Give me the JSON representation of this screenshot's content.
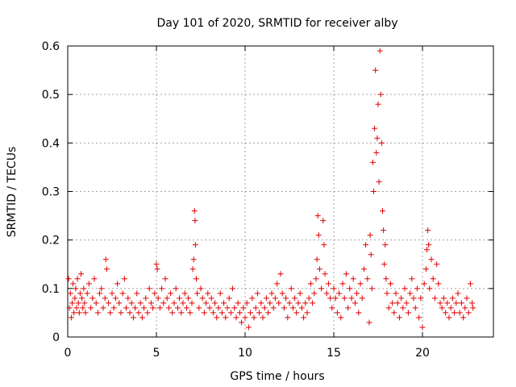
{
  "chart_data": {
    "type": "scatter",
    "title": "Day 101 of 2020, SRMTID for receiver alby",
    "xlabel": "GPS time / hours",
    "ylabel": "SRMTID / TECUs",
    "xlim": [
      0,
      24
    ],
    "ylim": [
      0,
      0.6
    ],
    "xticks": [
      0,
      5,
      10,
      15,
      20
    ],
    "xtick_labels": [
      "0",
      "5",
      "10",
      "15",
      "20"
    ],
    "yticks": [
      0,
      0.1,
      0.2,
      0.3,
      0.4,
      0.5,
      0.6
    ],
    "ytick_labels": [
      "0",
      "0.1",
      "0.2",
      "0.3",
      "0.4",
      "0.5",
      "0.6"
    ],
    "grid": true,
    "marker": "+",
    "color": "#e00000",
    "series": [
      {
        "name": "SRMTID",
        "points": [
          [
            0.05,
            0.12
          ],
          [
            0.1,
            0.06
          ],
          [
            0.15,
            0.09
          ],
          [
            0.2,
            0.04
          ],
          [
            0.25,
            0.07
          ],
          [
            0.3,
            0.11
          ],
          [
            0.35,
            0.05
          ],
          [
            0.4,
            0.08
          ],
          [
            0.45,
            0.1
          ],
          [
            0.5,
            0.06
          ],
          [
            0.55,
            0.12
          ],
          [
            0.6,
            0.07
          ],
          [
            0.65,
            0.05
          ],
          [
            0.7,
            0.09
          ],
          [
            0.75,
            0.13
          ],
          [
            0.8,
            0.08
          ],
          [
            0.85,
            0.06
          ],
          [
            0.9,
            0.1
          ],
          [
            0.95,
            0.07
          ],
          [
            1.0,
            0.05
          ],
          [
            1.1,
            0.09
          ],
          [
            1.2,
            0.11
          ],
          [
            1.3,
            0.06
          ],
          [
            1.4,
            0.08
          ],
          [
            1.5,
            0.12
          ],
          [
            1.6,
            0.07
          ],
          [
            1.7,
            0.05
          ],
          [
            1.8,
            0.09
          ],
          [
            1.9,
            0.1
          ],
          [
            2.0,
            0.06
          ],
          [
            2.1,
            0.08
          ],
          [
            2.15,
            0.16
          ],
          [
            2.2,
            0.14
          ],
          [
            2.3,
            0.07
          ],
          [
            2.4,
            0.05
          ],
          [
            2.5,
            0.09
          ],
          [
            2.6,
            0.06
          ],
          [
            2.7,
            0.08
          ],
          [
            2.8,
            0.11
          ],
          [
            2.9,
            0.07
          ],
          [
            3.0,
            0.05
          ],
          [
            3.1,
            0.09
          ],
          [
            3.2,
            0.12
          ],
          [
            3.3,
            0.06
          ],
          [
            3.4,
            0.08
          ],
          [
            3.5,
            0.05
          ],
          [
            3.6,
            0.07
          ],
          [
            3.7,
            0.04
          ],
          [
            3.8,
            0.06
          ],
          [
            3.9,
            0.09
          ],
          [
            4.0,
            0.05
          ],
          [
            4.1,
            0.07
          ],
          [
            4.2,
            0.04
          ],
          [
            4.3,
            0.06
          ],
          [
            4.4,
            0.08
          ],
          [
            4.5,
            0.05
          ],
          [
            4.6,
            0.1
          ],
          [
            4.7,
            0.07
          ],
          [
            4.8,
            0.06
          ],
          [
            4.9,
            0.09
          ],
          [
            5.0,
            0.15
          ],
          [
            5.05,
            0.14
          ],
          [
            5.1,
            0.08
          ],
          [
            5.2,
            0.06
          ],
          [
            5.3,
            0.1
          ],
          [
            5.4,
            0.07
          ],
          [
            5.5,
            0.12
          ],
          [
            5.6,
            0.08
          ],
          [
            5.7,
            0.06
          ],
          [
            5.8,
            0.09
          ],
          [
            5.9,
            0.05
          ],
          [
            6.0,
            0.07
          ],
          [
            6.1,
            0.1
          ],
          [
            6.2,
            0.06
          ],
          [
            6.3,
            0.08
          ],
          [
            6.4,
            0.05
          ],
          [
            6.5,
            0.07
          ],
          [
            6.6,
            0.09
          ],
          [
            6.7,
            0.06
          ],
          [
            6.8,
            0.08
          ],
          [
            6.9,
            0.05
          ],
          [
            7.0,
            0.07
          ],
          [
            7.05,
            0.14
          ],
          [
            7.1,
            0.16
          ],
          [
            7.15,
            0.26
          ],
          [
            7.18,
            0.24
          ],
          [
            7.2,
            0.19
          ],
          [
            7.25,
            0.12
          ],
          [
            7.3,
            0.09
          ],
          [
            7.4,
            0.06
          ],
          [
            7.5,
            0.1
          ],
          [
            7.6,
            0.08
          ],
          [
            7.7,
            0.05
          ],
          [
            7.8,
            0.07
          ],
          [
            7.9,
            0.09
          ],
          [
            8.0,
            0.06
          ],
          [
            8.1,
            0.08
          ],
          [
            8.2,
            0.05
          ],
          [
            8.3,
            0.07
          ],
          [
            8.4,
            0.04
          ],
          [
            8.5,
            0.06
          ],
          [
            8.6,
            0.09
          ],
          [
            8.7,
            0.05
          ],
          [
            8.8,
            0.07
          ],
          [
            8.9,
            0.04
          ],
          [
            9.0,
            0.06
          ],
          [
            9.1,
            0.08
          ],
          [
            9.2,
            0.05
          ],
          [
            9.3,
            0.1
          ],
          [
            9.4,
            0.06
          ],
          [
            9.5,
            0.04
          ],
          [
            9.6,
            0.07
          ],
          [
            9.7,
            0.05
          ],
          [
            9.8,
            0.03
          ],
          [
            9.9,
            0.06
          ],
          [
            10.0,
            0.04
          ],
          [
            10.1,
            0.07
          ],
          [
            10.2,
            0.02
          ],
          [
            10.3,
            0.05
          ],
          [
            10.4,
            0.08
          ],
          [
            10.5,
            0.04
          ],
          [
            10.6,
            0.06
          ],
          [
            10.7,
            0.09
          ],
          [
            10.8,
            0.05
          ],
          [
            10.9,
            0.07
          ],
          [
            11.0,
            0.04
          ],
          [
            11.1,
            0.06
          ],
          [
            11.2,
            0.08
          ],
          [
            11.3,
            0.05
          ],
          [
            11.4,
            0.07
          ],
          [
            11.5,
            0.09
          ],
          [
            11.6,
            0.06
          ],
          [
            11.7,
            0.08
          ],
          [
            11.8,
            0.11
          ],
          [
            11.9,
            0.07
          ],
          [
            12.0,
            0.13
          ],
          [
            12.1,
            0.09
          ],
          [
            12.2,
            0.06
          ],
          [
            12.3,
            0.08
          ],
          [
            12.4,
            0.04
          ],
          [
            12.5,
            0.07
          ],
          [
            12.6,
            0.1
          ],
          [
            12.7,
            0.06
          ],
          [
            12.8,
            0.08
          ],
          [
            12.9,
            0.05
          ],
          [
            13.0,
            0.07
          ],
          [
            13.1,
            0.09
          ],
          [
            13.2,
            0.06
          ],
          [
            13.3,
            0.04
          ],
          [
            13.4,
            0.07
          ],
          [
            13.5,
            0.05
          ],
          [
            13.6,
            0.08
          ],
          [
            13.7,
            0.11
          ],
          [
            13.8,
            0.07
          ],
          [
            13.9,
            0.09
          ],
          [
            14.0,
            0.12
          ],
          [
            14.05,
            0.16
          ],
          [
            14.1,
            0.25
          ],
          [
            14.15,
            0.21
          ],
          [
            14.2,
            0.14
          ],
          [
            14.3,
            0.1
          ],
          [
            14.4,
            0.24
          ],
          [
            14.45,
            0.19
          ],
          [
            14.5,
            0.13
          ],
          [
            14.6,
            0.09
          ],
          [
            14.7,
            0.11
          ],
          [
            14.8,
            0.08
          ],
          [
            14.9,
            0.06
          ],
          [
            15.0,
            0.1
          ],
          [
            15.1,
            0.08
          ],
          [
            15.2,
            0.05
          ],
          [
            15.3,
            0.09
          ],
          [
            15.4,
            0.04
          ],
          [
            15.5,
            0.11
          ],
          [
            15.6,
            0.08
          ],
          [
            15.7,
            0.13
          ],
          [
            15.8,
            0.06
          ],
          [
            15.9,
            0.1
          ],
          [
            16.0,
            0.08
          ],
          [
            16.1,
            0.12
          ],
          [
            16.2,
            0.07
          ],
          [
            16.3,
            0.09
          ],
          [
            16.4,
            0.05
          ],
          [
            16.5,
            0.11
          ],
          [
            16.6,
            0.08
          ],
          [
            16.7,
            0.14
          ],
          [
            16.8,
            0.19
          ],
          [
            16.9,
            0.12
          ],
          [
            17.0,
            0.03
          ],
          [
            17.05,
            0.21
          ],
          [
            17.1,
            0.17
          ],
          [
            17.15,
            0.1
          ],
          [
            17.2,
            0.36
          ],
          [
            17.25,
            0.3
          ],
          [
            17.3,
            0.43
          ],
          [
            17.35,
            0.55
          ],
          [
            17.4,
            0.38
          ],
          [
            17.45,
            0.41
          ],
          [
            17.5,
            0.48
          ],
          [
            17.55,
            0.32
          ],
          [
            17.6,
            0.59
          ],
          [
            17.65,
            0.5
          ],
          [
            17.7,
            0.4
          ],
          [
            17.75,
            0.26
          ],
          [
            17.8,
            0.22
          ],
          [
            17.85,
            0.15
          ],
          [
            17.9,
            0.19
          ],
          [
            17.95,
            0.12
          ],
          [
            18.0,
            0.09
          ],
          [
            18.1,
            0.06
          ],
          [
            18.2,
            0.11
          ],
          [
            18.3,
            0.07
          ],
          [
            18.4,
            0.05
          ],
          [
            18.5,
            0.09
          ],
          [
            18.6,
            0.07
          ],
          [
            18.7,
            0.04
          ],
          [
            18.8,
            0.08
          ],
          [
            18.9,
            0.06
          ],
          [
            19.0,
            0.1
          ],
          [
            19.1,
            0.07
          ],
          [
            19.2,
            0.05
          ],
          [
            19.3,
            0.09
          ],
          [
            19.4,
            0.12
          ],
          [
            19.5,
            0.08
          ],
          [
            19.6,
            0.06
          ],
          [
            19.7,
            0.1
          ],
          [
            19.8,
            0.04
          ],
          [
            19.9,
            0.08
          ],
          [
            20.0,
            0.02
          ],
          [
            20.1,
            0.11
          ],
          [
            20.2,
            0.14
          ],
          [
            20.25,
            0.18
          ],
          [
            20.3,
            0.22
          ],
          [
            20.35,
            0.19
          ],
          [
            20.4,
            0.1
          ],
          [
            20.5,
            0.16
          ],
          [
            20.6,
            0.12
          ],
          [
            20.7,
            0.08
          ],
          [
            20.8,
            0.15
          ],
          [
            20.9,
            0.11
          ],
          [
            21.0,
            0.07
          ],
          [
            21.1,
            0.06
          ],
          [
            21.2,
            0.08
          ],
          [
            21.3,
            0.05
          ],
          [
            21.4,
            0.07
          ],
          [
            21.5,
            0.04
          ],
          [
            21.6,
            0.06
          ],
          [
            21.7,
            0.08
          ],
          [
            21.8,
            0.05
          ],
          [
            21.9,
            0.07
          ],
          [
            22.0,
            0.09
          ],
          [
            22.1,
            0.05
          ],
          [
            22.2,
            0.07
          ],
          [
            22.3,
            0.04
          ],
          [
            22.4,
            0.06
          ],
          [
            22.5,
            0.08
          ],
          [
            22.6,
            0.05
          ],
          [
            22.7,
            0.11
          ],
          [
            22.8,
            0.07
          ],
          [
            22.85,
            0.06
          ]
        ]
      }
    ]
  }
}
